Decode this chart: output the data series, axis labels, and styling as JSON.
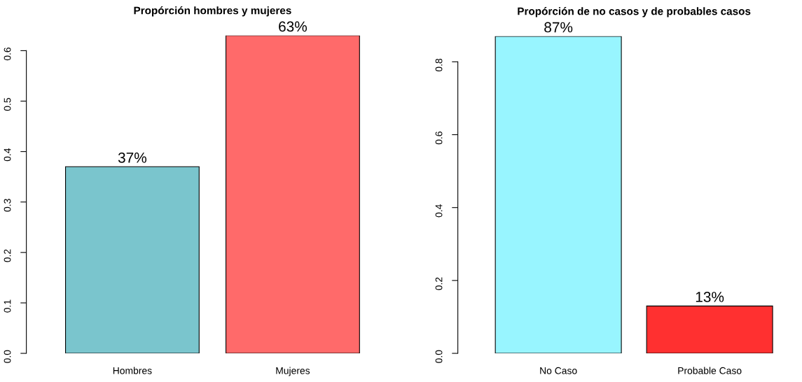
{
  "chart_data": [
    {
      "type": "bar",
      "title": "Propórción hombres y mujeres",
      "categories": [
        "Hombres",
        "Mujeres"
      ],
      "values": [
        0.37,
        0.63
      ],
      "colors": [
        "#7ac5cd",
        "#ff6a6a"
      ],
      "value_labels": [
        "37%",
        "63%"
      ],
      "ylim": [
        0,
        0.63
      ],
      "yticks": [
        {
          "value": 0,
          "label": "0.0"
        },
        0.1,
        0.2,
        0.3,
        0.4,
        0.5,
        0.6
      ],
      "grid": false,
      "legend": false
    },
    {
      "type": "bar",
      "title": "Propórción de no casos y de probables casos",
      "categories": [
        "No Caso",
        "Probable Caso"
      ],
      "values": [
        0.87,
        0.13
      ],
      "colors": [
        "#98f5ff",
        "#ff3030"
      ],
      "value_labels": [
        "87%",
        "13%"
      ],
      "ylim": [
        0,
        0.87
      ],
      "yticks": [
        {
          "value": 0,
          "label": "0.0"
        },
        0.2,
        0.4,
        0.6,
        0.8
      ],
      "grid": false,
      "legend": false
    }
  ]
}
